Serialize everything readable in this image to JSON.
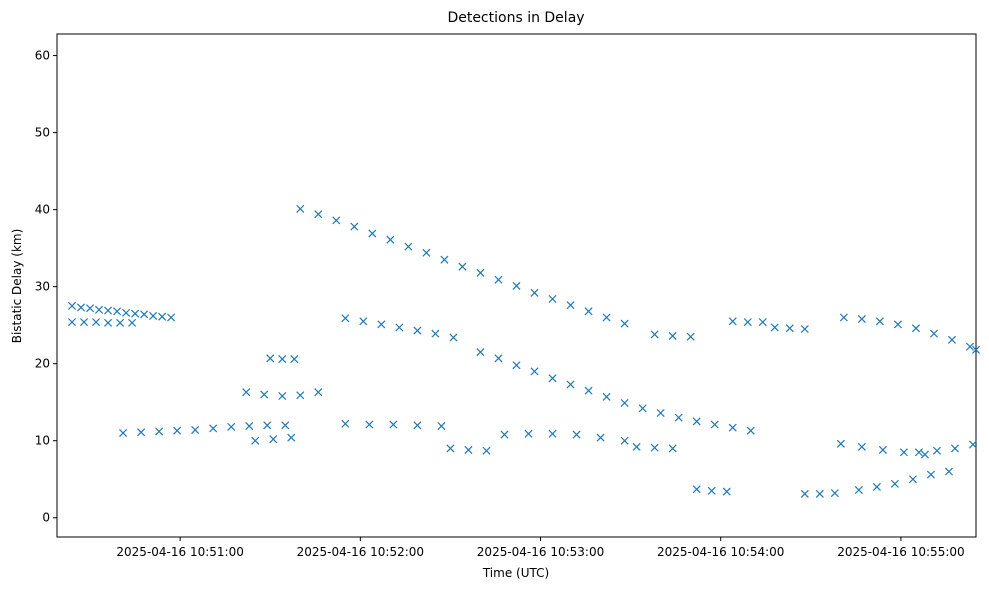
{
  "chart_data": {
    "type": "scatter",
    "title": "Detections in Delay",
    "xlabel": "Time (UTC)",
    "ylabel": "Bistatic Delay (km)",
    "x_unit": "time",
    "x_ticks": [
      "2025-04-16 10:51:00",
      "2025-04-16 10:52:00",
      "2025-04-16 10:53:00",
      "2025-04-16 10:54:00",
      "2025-04-16 10:55:00"
    ],
    "x_range": [
      "2025-04-16 10:50:19",
      "2025-04-16 10:55:25"
    ],
    "y_ticks": [
      0,
      10,
      20,
      30,
      40,
      50,
      60
    ],
    "ylim": [
      -2.5,
      62.8
    ],
    "grid": false,
    "legend": "none",
    "marker": "x",
    "color": "#1f77b4",
    "series": [
      {
        "values_note": "approximate detections, x as time",
        "points": [
          [
            "2025-04-16 10:50:24",
            27.5
          ],
          [
            "2025-04-16 10:50:27",
            27.3
          ],
          [
            "2025-04-16 10:50:30",
            27.2
          ],
          [
            "2025-04-16 10:50:33",
            27.0
          ],
          [
            "2025-04-16 10:50:36",
            26.9
          ],
          [
            "2025-04-16 10:50:39",
            26.8
          ],
          [
            "2025-04-16 10:50:42",
            26.6
          ],
          [
            "2025-04-16 10:50:45",
            26.5
          ],
          [
            "2025-04-16 10:50:48",
            26.4
          ],
          [
            "2025-04-16 10:50:51",
            26.2
          ],
          [
            "2025-04-16 10:50:54",
            26.1
          ],
          [
            "2025-04-16 10:50:57",
            26.0
          ],
          [
            "2025-04-16 10:50:24",
            25.4
          ],
          [
            "2025-04-16 10:50:28",
            25.4
          ],
          [
            "2025-04-16 10:50:32",
            25.4
          ],
          [
            "2025-04-16 10:50:36",
            25.3
          ],
          [
            "2025-04-16 10:50:40",
            25.3
          ],
          [
            "2025-04-16 10:50:44",
            25.3
          ],
          [
            "2025-04-16 10:50:41",
            11.0
          ],
          [
            "2025-04-16 10:50:47",
            11.1
          ],
          [
            "2025-04-16 10:50:53",
            11.2
          ],
          [
            "2025-04-16 10:50:59",
            11.3
          ],
          [
            "2025-04-16 10:51:05",
            11.4
          ],
          [
            "2025-04-16 10:51:11",
            11.6
          ],
          [
            "2025-04-16 10:51:17",
            11.8
          ],
          [
            "2025-04-16 10:51:23",
            11.9
          ],
          [
            "2025-04-16 10:51:29",
            12.0
          ],
          [
            "2025-04-16 10:51:35",
            12.0
          ],
          [
            "2025-04-16 10:51:40",
            40.1
          ],
          [
            "2025-04-16 10:51:46",
            39.4
          ],
          [
            "2025-04-16 10:51:52",
            38.6
          ],
          [
            "2025-04-16 10:51:58",
            37.8
          ],
          [
            "2025-04-16 10:52:04",
            36.9
          ],
          [
            "2025-04-16 10:52:10",
            36.1
          ],
          [
            "2025-04-16 10:52:16",
            35.2
          ],
          [
            "2025-04-16 10:52:22",
            34.4
          ],
          [
            "2025-04-16 10:52:28",
            33.5
          ],
          [
            "2025-04-16 10:52:34",
            32.6
          ],
          [
            "2025-04-16 10:52:40",
            31.8
          ],
          [
            "2025-04-16 10:52:46",
            30.9
          ],
          [
            "2025-04-16 10:52:52",
            30.1
          ],
          [
            "2025-04-16 10:52:58",
            29.2
          ],
          [
            "2025-04-16 10:53:04",
            28.4
          ],
          [
            "2025-04-16 10:53:10",
            27.6
          ],
          [
            "2025-04-16 10:53:16",
            26.8
          ],
          [
            "2025-04-16 10:53:22",
            26.0
          ],
          [
            "2025-04-16 10:53:28",
            25.2
          ],
          [
            "2025-04-16 10:51:55",
            25.9
          ],
          [
            "2025-04-16 10:52:01",
            25.5
          ],
          [
            "2025-04-16 10:52:07",
            25.1
          ],
          [
            "2025-04-16 10:52:13",
            24.7
          ],
          [
            "2025-04-16 10:52:19",
            24.3
          ],
          [
            "2025-04-16 10:52:25",
            23.9
          ],
          [
            "2025-04-16 10:52:31",
            23.4
          ],
          [
            "2025-04-16 10:52:40",
            21.5
          ],
          [
            "2025-04-16 10:52:46",
            20.7
          ],
          [
            "2025-04-16 10:52:52",
            19.8
          ],
          [
            "2025-04-16 10:52:58",
            19.0
          ],
          [
            "2025-04-16 10:53:04",
            18.1
          ],
          [
            "2025-04-16 10:53:10",
            17.3
          ],
          [
            "2025-04-16 10:53:16",
            16.5
          ],
          [
            "2025-04-16 10:53:22",
            15.7
          ],
          [
            "2025-04-16 10:53:28",
            14.9
          ],
          [
            "2025-04-16 10:53:34",
            14.2
          ],
          [
            "2025-04-16 10:53:40",
            13.6
          ],
          [
            "2025-04-16 10:53:46",
            13.0
          ],
          [
            "2025-04-16 10:53:52",
            12.5
          ],
          [
            "2025-04-16 10:53:58",
            12.1
          ],
          [
            "2025-04-16 10:54:04",
            11.7
          ],
          [
            "2025-04-16 10:54:10",
            11.3
          ],
          [
            "2025-04-16 10:51:30",
            20.7
          ],
          [
            "2025-04-16 10:51:34",
            20.6
          ],
          [
            "2025-04-16 10:51:38",
            20.6
          ],
          [
            "2025-04-16 10:51:22",
            16.3
          ],
          [
            "2025-04-16 10:51:28",
            16.0
          ],
          [
            "2025-04-16 10:51:34",
            15.8
          ],
          [
            "2025-04-16 10:51:40",
            15.9
          ],
          [
            "2025-04-16 10:51:46",
            16.3
          ],
          [
            "2025-04-16 10:51:25",
            10.0
          ],
          [
            "2025-04-16 10:51:31",
            10.2
          ],
          [
            "2025-04-16 10:51:37",
            10.4
          ],
          [
            "2025-04-16 10:51:55",
            12.2
          ],
          [
            "2025-04-16 10:52:03",
            12.1
          ],
          [
            "2025-04-16 10:52:11",
            12.1
          ],
          [
            "2025-04-16 10:52:19",
            12.0
          ],
          [
            "2025-04-16 10:52:27",
            11.9
          ],
          [
            "2025-04-16 10:52:30",
            9.0
          ],
          [
            "2025-04-16 10:52:36",
            8.8
          ],
          [
            "2025-04-16 10:52:42",
            8.7
          ],
          [
            "2025-04-16 10:52:48",
            10.8
          ],
          [
            "2025-04-16 10:52:56",
            10.9
          ],
          [
            "2025-04-16 10:53:04",
            10.9
          ],
          [
            "2025-04-16 10:53:12",
            10.8
          ],
          [
            "2025-04-16 10:53:20",
            10.4
          ],
          [
            "2025-04-16 10:53:28",
            10.0
          ],
          [
            "2025-04-16 10:53:32",
            9.2
          ],
          [
            "2025-04-16 10:53:38",
            9.1
          ],
          [
            "2025-04-16 10:53:44",
            9.0
          ],
          [
            "2025-04-16 10:53:38",
            23.8
          ],
          [
            "2025-04-16 10:53:44",
            23.6
          ],
          [
            "2025-04-16 10:53:50",
            23.5
          ],
          [
            "2025-04-16 10:54:04",
            25.5
          ],
          [
            "2025-04-16 10:54:09",
            25.4
          ],
          [
            "2025-04-16 10:54:14",
            25.4
          ],
          [
            "2025-04-16 10:54:18",
            24.7
          ],
          [
            "2025-04-16 10:54:23",
            24.6
          ],
          [
            "2025-04-16 10:54:28",
            24.5
          ],
          [
            "2025-04-16 10:53:52",
            3.7
          ],
          [
            "2025-04-16 10:53:57",
            3.5
          ],
          [
            "2025-04-16 10:54:02",
            3.4
          ],
          [
            "2025-04-16 10:54:28",
            3.1
          ],
          [
            "2025-04-16 10:54:33",
            3.1
          ],
          [
            "2025-04-16 10:54:38",
            3.2
          ],
          [
            "2025-04-16 10:54:46",
            3.6
          ],
          [
            "2025-04-16 10:54:52",
            4.0
          ],
          [
            "2025-04-16 10:54:58",
            4.4
          ],
          [
            "2025-04-16 10:55:04",
            5.0
          ],
          [
            "2025-04-16 10:55:10",
            5.6
          ],
          [
            "2025-04-16 10:55:16",
            6.0
          ],
          [
            "2025-04-16 10:54:40",
            9.6
          ],
          [
            "2025-04-16 10:54:47",
            9.2
          ],
          [
            "2025-04-16 10:54:54",
            8.8
          ],
          [
            "2025-04-16 10:55:01",
            8.5
          ],
          [
            "2025-04-16 10:55:08",
            8.2
          ],
          [
            "2025-04-16 10:55:06",
            8.5
          ],
          [
            "2025-04-16 10:55:12",
            8.7
          ],
          [
            "2025-04-16 10:55:18",
            9.0
          ],
          [
            "2025-04-16 10:55:24",
            9.5
          ],
          [
            "2025-04-16 10:54:41",
            26.0
          ],
          [
            "2025-04-16 10:54:47",
            25.8
          ],
          [
            "2025-04-16 10:54:53",
            25.5
          ],
          [
            "2025-04-16 10:54:59",
            25.1
          ],
          [
            "2025-04-16 10:55:05",
            24.6
          ],
          [
            "2025-04-16 10:55:11",
            23.9
          ],
          [
            "2025-04-16 10:55:17",
            23.1
          ],
          [
            "2025-04-16 10:55:23",
            22.2
          ],
          [
            "2025-04-16 10:55:25",
            21.8
          ]
        ]
      }
    ]
  }
}
